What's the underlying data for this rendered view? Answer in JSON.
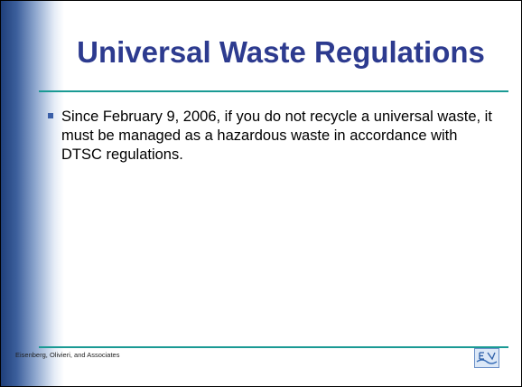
{
  "slide": {
    "title": "Universal Waste Regulations",
    "bullets": [
      "Since February 9, 2006, if you do not recycle a universal waste, it must be managed as a hazardous waste in accordance with DTSC regulations."
    ],
    "footer": "Eisenberg, Olivieri, and Associates"
  }
}
